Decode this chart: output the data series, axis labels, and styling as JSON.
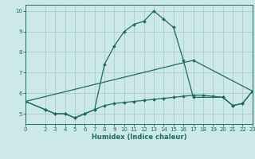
{
  "xlabel": "Humidex (Indice chaleur)",
  "bg_color": "#cce8e8",
  "line_color": "#1e6b5e",
  "grid_color": "#aacccc",
  "xlim": [
    0,
    23
  ],
  "ylim": [
    4.5,
    10.3
  ],
  "yticks": [
    5,
    6,
    7,
    8,
    9,
    10
  ],
  "xticks": [
    0,
    2,
    3,
    4,
    5,
    6,
    7,
    8,
    9,
    10,
    11,
    12,
    13,
    14,
    15,
    16,
    17,
    18,
    19,
    20,
    21,
    22,
    23
  ],
  "curves": [
    {
      "x": [
        0,
        2,
        3,
        4,
        5,
        6,
        7,
        8,
        9,
        10,
        11,
        12,
        13,
        14,
        15,
        16,
        17,
        20,
        21,
        22,
        23
      ],
      "y": [
        5.6,
        5.2,
        5.0,
        5.0,
        4.8,
        5.0,
        5.2,
        7.4,
        8.3,
        9.0,
        9.35,
        9.5,
        10.0,
        9.6,
        9.2,
        7.6,
        5.8,
        5.8,
        5.4,
        5.5,
        6.1
      ]
    },
    {
      "x": [
        0,
        17,
        23
      ],
      "y": [
        5.6,
        7.6,
        6.1
      ]
    },
    {
      "x": [
        0,
        2,
        3,
        4,
        5,
        6,
        7,
        8,
        9,
        10,
        11,
        12,
        13,
        14,
        15,
        16,
        17,
        18,
        19,
        20,
        21,
        22,
        23
      ],
      "y": [
        5.6,
        5.2,
        5.0,
        5.0,
        4.8,
        5.0,
        5.2,
        5.4,
        5.5,
        5.55,
        5.6,
        5.65,
        5.7,
        5.75,
        5.8,
        5.85,
        5.9,
        5.9,
        5.85,
        5.8,
        5.4,
        5.5,
        6.1
      ]
    }
  ]
}
